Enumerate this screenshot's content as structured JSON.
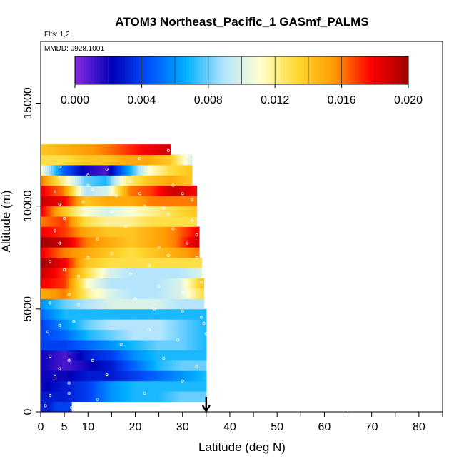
{
  "chart_data": {
    "type": "heatmap",
    "title": "ATOM3 Northeast_Pacific_1 GASmf_PALMS",
    "flights_label": "Flts: 1,2",
    "dates_label": "MMDD: 0928,1001",
    "xlabel": "Latitude (deg N)",
    "ylabel": "Altitude (m)",
    "xlim": [
      0,
      85
    ],
    "ylim": [
      0,
      18000
    ],
    "xticks_major": [
      0,
      5,
      10,
      20,
      30,
      40,
      50,
      60,
      70,
      80
    ],
    "xticks_minor": [
      15,
      25,
      35,
      45,
      55,
      65,
      75,
      85
    ],
    "yticks": [
      0,
      5000,
      10000,
      15000
    ],
    "grid": false,
    "marker": {
      "latitude": 35,
      "label": "arrow"
    },
    "colorbar": {
      "min": 0.0,
      "max": 0.02,
      "ticks": [
        "0.000",
        "0.004",
        "0.008",
        "0.012",
        "0.016",
        "0.020"
      ],
      "colors": [
        "#8a2be2",
        "#0000b8",
        "#0050ff",
        "#00b0ff",
        "#b0e4ff",
        "#ffffd0",
        "#ffd830",
        "#ff9a00",
        "#ff0000",
        "#a00000"
      ],
      "placement": "top"
    },
    "rows": [
      {
        "alt": 250,
        "lat_max": 6.5,
        "values": [
          0.003,
          0.003,
          0.004,
          0.004,
          0.004
        ]
      },
      {
        "alt": 750,
        "lat_max": 35,
        "values": [
          0.003,
          0.003,
          0.004,
          0.006,
          0.007,
          0.007,
          0.008,
          0.008
        ]
      },
      {
        "alt": 1250,
        "lat_max": 35,
        "values": [
          0.002,
          0.003,
          0.004,
          0.006,
          0.007,
          0.007,
          0.007,
          0.007
        ]
      },
      {
        "alt": 1750,
        "lat_max": 35,
        "values": [
          0.002,
          0.002,
          0.003,
          0.003,
          0.004,
          0.005,
          0.006,
          0.007
        ]
      },
      {
        "alt": 2250,
        "lat_max": 35,
        "values": [
          0.002,
          0.001,
          0.002,
          0.003,
          0.005,
          0.007,
          0.008,
          0.008
        ]
      },
      {
        "alt": 2750,
        "lat_max": 35,
        "values": [
          0.002,
          0.001,
          0.003,
          0.004,
          0.006,
          0.007,
          0.007,
          0.007
        ]
      },
      {
        "alt": 3250,
        "lat_max": 35,
        "values": [
          0.004,
          0.004,
          0.005,
          0.006,
          0.007,
          0.008,
          0.008,
          0.007
        ]
      },
      {
        "alt": 3750,
        "lat_max": 35,
        "values": [
          0.004,
          0.005,
          0.007,
          0.008,
          0.009,
          0.009,
          0.008,
          0.007
        ]
      },
      {
        "alt": 4250,
        "lat_max": 35,
        "values": [
          0.004,
          0.006,
          0.008,
          0.009,
          0.009,
          0.009,
          0.008,
          0.007
        ]
      },
      {
        "alt": 4750,
        "lat_max": 35,
        "values": [
          0.005,
          0.007,
          0.007,
          0.007,
          0.007,
          0.007,
          0.007,
          0.007
        ]
      },
      {
        "alt": 5250,
        "lat_max": 34.5,
        "values": [
          0.006,
          0.008,
          0.009,
          0.01,
          0.01,
          0.01,
          0.009,
          0.009
        ]
      },
      {
        "alt": 5750,
        "lat_max": 34.5,
        "values": [
          0.015,
          0.016,
          0.012,
          0.01,
          0.009,
          0.009,
          0.01,
          0.013
        ]
      },
      {
        "alt": 6250,
        "lat_max": 34.5,
        "values": [
          0.018,
          0.017,
          0.011,
          0.009,
          0.009,
          0.009,
          0.01,
          0.014
        ]
      },
      {
        "alt": 6750,
        "lat_max": 34,
        "values": [
          0.019,
          0.017,
          0.013,
          0.01,
          0.009,
          0.009,
          0.009,
          0.01
        ]
      },
      {
        "alt": 7250,
        "lat_max": 34,
        "values": [
          0.02,
          0.018,
          0.014,
          0.013,
          0.013,
          0.013,
          0.013,
          0.013
        ]
      },
      {
        "alt": 7750,
        "lat_max": 33.5,
        "values": [
          0.018,
          0.016,
          0.015,
          0.014,
          0.013,
          0.014,
          0.015,
          0.016
        ]
      },
      {
        "alt": 8250,
        "lat_max": 33.5,
        "values": [
          0.02,
          0.019,
          0.016,
          0.015,
          0.014,
          0.015,
          0.016,
          0.019
        ]
      },
      {
        "alt": 8750,
        "lat_max": 33.5,
        "values": [
          0.018,
          0.017,
          0.015,
          0.014,
          0.014,
          0.015,
          0.016,
          0.018
        ]
      },
      {
        "alt": 9250,
        "lat_max": 33,
        "values": [
          0.016,
          0.017,
          0.013,
          0.012,
          0.012,
          0.013,
          0.013,
          0.013
        ]
      },
      {
        "alt": 9750,
        "lat_max": 33,
        "values": [
          0.018,
          0.014,
          0.011,
          0.01,
          0.011,
          0.012,
          0.013,
          0.014
        ]
      },
      {
        "alt": 10250,
        "lat_max": 33,
        "values": [
          0.019,
          0.018,
          0.014,
          0.015,
          0.015,
          0.016,
          0.016,
          0.016
        ]
      },
      {
        "alt": 10750,
        "lat_max": 33,
        "values": [
          0.018,
          0.016,
          0.009,
          0.01,
          0.016,
          0.017,
          0.019,
          0.018
        ]
      },
      {
        "alt": 11250,
        "lat_max": 32,
        "values": [
          0.016,
          0.012,
          0.008,
          0.007,
          0.012,
          0.014,
          0.015,
          0.014
        ]
      },
      {
        "alt": 11750,
        "lat_max": 32,
        "values": [
          0.011,
          0.005,
          0.002,
          0.001,
          0.006,
          0.011,
          0.013,
          0.014
        ]
      },
      {
        "alt": 12250,
        "lat_max": 32,
        "values": [
          0.013,
          0.013,
          0.014,
          0.014,
          0.015,
          0.015,
          0.014,
          0.01
        ]
      },
      {
        "alt": 12750,
        "lat_max": 27.5,
        "values": [
          0.014,
          0.016,
          0.019
        ]
      }
    ],
    "points": [
      [
        1,
        300
      ],
      [
        2,
        800
      ],
      [
        3,
        1700
      ],
      [
        4,
        2100
      ],
      [
        6,
        1400
      ],
      [
        2,
        2700
      ],
      [
        6,
        2500
      ],
      [
        11,
        2500
      ],
      [
        14,
        1800
      ],
      [
        6,
        900
      ],
      [
        6.5,
        200
      ],
      [
        1.5,
        3900
      ],
      [
        4,
        4200
      ],
      [
        7,
        4400
      ],
      [
        23,
        4000
      ],
      [
        29,
        3500
      ],
      [
        34.5,
        4300
      ],
      [
        35,
        3800
      ],
      [
        34,
        4600
      ],
      [
        24,
        5000
      ],
      [
        2,
        5300
      ],
      [
        6,
        5700
      ],
      [
        11,
        5900
      ],
      [
        20,
        5500
      ],
      [
        34,
        6300
      ],
      [
        30,
        5800
      ],
      [
        5,
        6900
      ],
      [
        8,
        6600
      ],
      [
        19,
        6700
      ],
      [
        25,
        6100
      ],
      [
        2,
        7300
      ],
      [
        10,
        7500
      ],
      [
        15,
        7700
      ],
      [
        27,
        7600
      ],
      [
        33,
        7500
      ],
      [
        4,
        8200
      ],
      [
        12,
        8400
      ],
      [
        25,
        8000
      ],
      [
        33,
        8600
      ],
      [
        3,
        8800
      ],
      [
        18,
        9000
      ],
      [
        28,
        8900
      ],
      [
        5,
        9400
      ],
      [
        15,
        9700
      ],
      [
        27,
        9600
      ],
      [
        32,
        9300
      ],
      [
        4,
        10100
      ],
      [
        9,
        10200
      ],
      [
        22,
        10000
      ],
      [
        32,
        10300
      ],
      [
        3,
        10700
      ],
      [
        11,
        10800
      ],
      [
        21,
        10600
      ],
      [
        30,
        10600
      ],
      [
        4,
        11400
      ],
      [
        10,
        11500
      ],
      [
        19,
        11200
      ],
      [
        28,
        11000
      ],
      [
        4,
        11900
      ],
      [
        14,
        11800
      ],
      [
        21,
        12300
      ],
      [
        31,
        12400
      ],
      [
        27,
        12700
      ],
      [
        10,
        11000
      ],
      [
        16,
        10500
      ],
      [
        26,
        9900
      ],
      [
        31,
        8200
      ],
      [
        23,
        7100
      ],
      [
        8,
        5200
      ],
      [
        30,
        4900
      ],
      [
        17,
        3300
      ],
      [
        26,
        2600
      ],
      [
        33,
        2200
      ],
      [
        30,
        1500
      ],
      [
        22,
        900
      ],
      [
        12,
        600
      ],
      [
        31,
        300
      ]
    ]
  }
}
